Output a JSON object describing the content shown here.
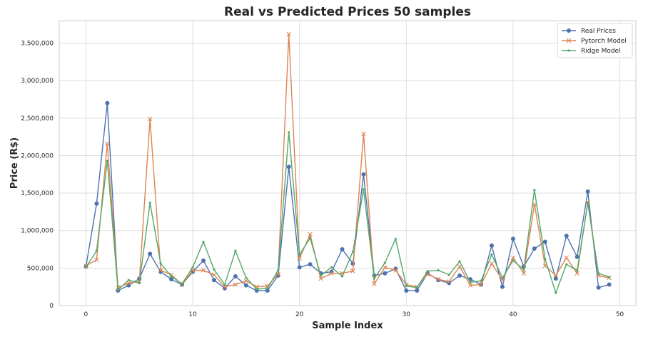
{
  "chart_data": {
    "type": "line",
    "title": "Real vs Predicted Prices 50 samples",
    "xlabel": "Sample Index",
    "ylabel": "Price (R$)",
    "xlim": [
      -2.5,
      51.5
    ],
    "ylim": [
      0,
      3800000
    ],
    "x_ticks": [
      0,
      10,
      20,
      30,
      40,
      50
    ],
    "x_tick_labels": [
      "0",
      "10",
      "20",
      "30",
      "40",
      "50"
    ],
    "y_ticks": [
      0,
      500000,
      1000000,
      1500000,
      2000000,
      2500000,
      3000000,
      3500000
    ],
    "y_tick_labels": [
      "0",
      "500,000",
      "1,000,000",
      "1,500,000",
      "2,000,000",
      "2,500,000",
      "3,000,000",
      "3,500,000"
    ],
    "grid": true,
    "legend_position": "top-right",
    "x": [
      0,
      1,
      2,
      3,
      4,
      5,
      6,
      7,
      8,
      9,
      10,
      11,
      12,
      13,
      14,
      15,
      16,
      17,
      18,
      19,
      20,
      21,
      22,
      23,
      24,
      25,
      26,
      27,
      28,
      29,
      30,
      31,
      32,
      33,
      34,
      35,
      36,
      37,
      38,
      39,
      40,
      41,
      42,
      43,
      44,
      45,
      46,
      47,
      48,
      49
    ],
    "series": [
      {
        "name": "Real Prices",
        "color": "#4c72b0",
        "marker": "circle",
        "values": [
          520000,
          1360000,
          2700000,
          200000,
          270000,
          360000,
          690000,
          450000,
          350000,
          280000,
          450000,
          600000,
          340000,
          230000,
          390000,
          270000,
          200000,
          200000,
          400000,
          1850000,
          510000,
          550000,
          430000,
          450000,
          750000,
          560000,
          1750000,
          400000,
          430000,
          490000,
          200000,
          200000,
          430000,
          340000,
          300000,
          400000,
          350000,
          280000,
          800000,
          250000,
          890000,
          520000,
          760000,
          850000,
          360000,
          930000,
          650000,
          1520000,
          240000,
          280000
        ]
      },
      {
        "name": "Pytorch Model",
        "color": "#dd8452",
        "marker": "x",
        "values": [
          530000,
          610000,
          2160000,
          240000,
          300000,
          320000,
          2490000,
          470000,
          410000,
          280000,
          470000,
          470000,
          410000,
          250000,
          280000,
          330000,
          250000,
          260000,
          420000,
          3620000,
          630000,
          950000,
          360000,
          430000,
          430000,
          460000,
          2290000,
          290000,
          510000,
          470000,
          280000,
          250000,
          420000,
          350000,
          320000,
          520000,
          270000,
          280000,
          560000,
          340000,
          640000,
          430000,
          1350000,
          530000,
          400000,
          640000,
          430000,
          1380000,
          400000,
          370000
        ]
      },
      {
        "name": "Ridge Model",
        "color": "#55a868",
        "marker": "dot",
        "values": [
          510000,
          730000,
          1930000,
          210000,
          340000,
          300000,
          1370000,
          560000,
          390000,
          290000,
          510000,
          850000,
          480000,
          280000,
          730000,
          370000,
          220000,
          230000,
          470000,
          2310000,
          680000,
          900000,
          400000,
          510000,
          390000,
          720000,
          1550000,
          360000,
          570000,
          890000,
          260000,
          240000,
          460000,
          470000,
          410000,
          590000,
          310000,
          330000,
          680000,
          370000,
          600000,
          480000,
          1540000,
          620000,
          170000,
          550000,
          470000,
          1370000,
          430000,
          380000
        ]
      }
    ]
  }
}
